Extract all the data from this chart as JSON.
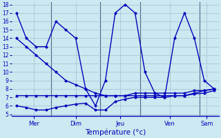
{
  "bg_color": "#cce8f0",
  "line_color": "#0000bb",
  "grid_color": "#99c4d0",
  "xlabel": "Température (°c)",
  "y_min": 5,
  "y_max": 18,
  "ytick_fontsize": 5.5,
  "xtick_fontsize": 6.0,
  "xlabel_fontsize": 7.5,
  "marker_size": 2.5,
  "line_width": 1.0,
  "series_main": {
    "x": [
      0,
      1,
      2,
      3,
      4,
      5,
      6,
      7,
      8,
      9,
      10,
      11,
      12,
      13,
      14,
      15,
      16,
      17,
      18,
      19,
      20
    ],
    "y": [
      17,
      14,
      13,
      13,
      16,
      15,
      14,
      8,
      6,
      9,
      17,
      18,
      17,
      10,
      7.5,
      7,
      14,
      17,
      14,
      9,
      8
    ]
  },
  "series_diag": {
    "x": [
      0,
      1,
      2,
      3,
      4,
      5,
      6,
      7,
      8,
      9,
      10,
      11,
      12,
      13,
      14,
      15,
      16,
      17,
      18,
      19,
      20
    ],
    "y": [
      14,
      13,
      12,
      11,
      10,
      9,
      8.5,
      8,
      7.5,
      7.2,
      7.2,
      7.2,
      7.2,
      7.2,
      7.2,
      7.2,
      7.2,
      7.2,
      7.5,
      7.8,
      8
    ]
  },
  "series_flat_high": {
    "x": [
      0,
      1,
      2,
      3,
      4,
      5,
      6,
      7,
      8,
      9,
      10,
      11,
      12,
      13,
      14,
      15,
      16,
      17,
      18,
      19,
      20
    ],
    "y": [
      7.2,
      7.2,
      7.2,
      7.2,
      7.2,
      7.2,
      7.2,
      7.2,
      7.2,
      7.2,
      7.2,
      7.2,
      7.5,
      7.5,
      7.5,
      7.5,
      7.5,
      7.5,
      7.8,
      7.8,
      8.0
    ]
  },
  "series_flat_low": {
    "x": [
      0,
      1,
      2,
      3,
      4,
      5,
      6,
      7,
      8,
      9,
      10,
      11,
      12,
      13,
      14,
      15,
      16,
      17,
      18,
      19,
      20
    ],
    "y": [
      6.0,
      5.8,
      5.5,
      5.5,
      5.8,
      6.0,
      6.2,
      6.3,
      5.5,
      5.5,
      6.5,
      6.8,
      7.0,
      7.0,
      7.0,
      7.0,
      7.2,
      7.2,
      7.4,
      7.5,
      7.8
    ]
  },
  "vline_positions": [
    3.5,
    8.5,
    12.5,
    18.5
  ],
  "vline_color": "#446688",
  "xtick_positions": [
    1.75,
    6.0,
    10.5,
    15.5,
    19.25
  ],
  "xtick_labels": [
    "Mer",
    "Dim",
    "Jeu",
    "Ven",
    "Sam"
  ],
  "xlim": [
    -0.5,
    20.5
  ],
  "ylim": [
    4.8,
    18.3
  ]
}
